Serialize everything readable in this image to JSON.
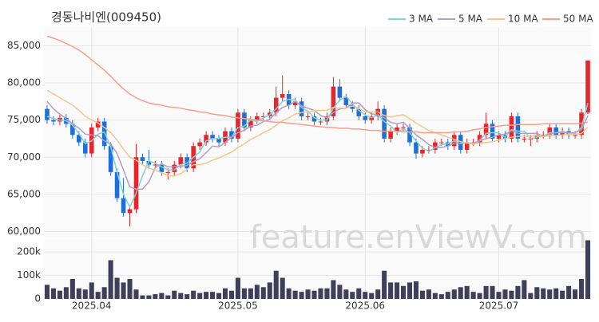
{
  "chart_data": [
    {
      "type": "candlestick",
      "title": "경동나비엔(009450)",
      "watermark": "feature.enViewV.com",
      "categories": [
        null,
        null,
        null,
        null,
        null,
        null,
        null,
        "2025.04",
        null,
        null,
        null,
        null,
        null,
        null,
        null,
        null,
        null,
        null,
        null,
        null,
        null,
        null,
        null,
        null,
        null,
        null,
        null,
        null,
        null,
        null,
        "2025.05",
        null,
        null,
        null,
        null,
        null,
        null,
        null,
        null,
        null,
        null,
        null,
        null,
        null,
        null,
        null,
        null,
        null,
        null,
        null,
        "2025.06",
        null,
        null,
        null,
        null,
        null,
        null,
        null,
        null,
        null,
        null,
        null,
        null,
        null,
        null,
        null,
        null,
        null,
        null,
        null,
        null,
        "2025.07",
        null,
        null,
        null,
        null,
        null,
        null,
        null,
        null,
        null,
        null,
        null,
        null,
        null,
        null
      ],
      "open": [
        76500,
        75000,
        74800,
        75300,
        74500,
        73000,
        72000,
        70500,
        74000,
        74800,
        71500,
        68000,
        64500,
        62500,
        63000,
        70000,
        69500,
        69000,
        69000,
        68000,
        68000,
        69000,
        70000,
        68500,
        71500,
        72000,
        73000,
        72500,
        72000,
        73500,
        72500,
        76000,
        74000,
        75000,
        75500,
        75500,
        76000,
        78000,
        78500,
        77000,
        77500,
        75500,
        75500,
        74800,
        74800,
        75500,
        79500,
        78000,
        77000,
        76500,
        75500,
        75000,
        75500,
        76500,
        72500,
        73500,
        74000,
        74000,
        72000,
        70500,
        71000,
        71000,
        72000,
        72000,
        71500,
        73000,
        71000,
        72000,
        72000,
        73000,
        74500,
        72500,
        73000,
        72500,
        75500,
        72500,
        72500,
        72500,
        73000,
        73000,
        74000,
        73000,
        73500,
        73000,
        73000,
        76000
      ],
      "high": [
        77000,
        75500,
        75800,
        75800,
        75000,
        73500,
        72500,
        74500,
        75300,
        75300,
        72000,
        68500,
        67200,
        63500,
        71800,
        70500,
        71000,
        69500,
        69500,
        68500,
        69500,
        70500,
        70500,
        72000,
        72500,
        73500,
        73500,
        73000,
        74000,
        74000,
        76500,
        76500,
        75500,
        76000,
        76000,
        76500,
        79500,
        81000,
        79000,
        78000,
        78000,
        76000,
        76000,
        75300,
        76000,
        80800,
        80500,
        78500,
        77500,
        77000,
        76000,
        76000,
        77500,
        77000,
        74000,
        74500,
        74500,
        74500,
        72500,
        71500,
        71500,
        72500,
        72500,
        72500,
        73500,
        73500,
        72500,
        72500,
        73500,
        76000,
        75000,
        73500,
        73500,
        76000,
        76000,
        73000,
        73000,
        73500,
        73500,
        74500,
        74500,
        74000,
        74000,
        73500,
        76500,
        83000
      ],
      "low": [
        74500,
        74300,
        74300,
        74000,
        72500,
        71500,
        70000,
        70000,
        73500,
        71000,
        67500,
        64000,
        62000,
        60700,
        62500,
        69000,
        68500,
        68500,
        67500,
        67000,
        67500,
        68500,
        68000,
        68000,
        71000,
        71500,
        72000,
        71500,
        71500,
        72000,
        72000,
        73500,
        73500,
        74500,
        75000,
        75000,
        75500,
        77500,
        76500,
        76500,
        75000,
        75000,
        74300,
        74300,
        74300,
        75000,
        77500,
        76500,
        76000,
        75000,
        74500,
        74500,
        75000,
        72000,
        72000,
        73000,
        73500,
        71500,
        69800,
        70000,
        70500,
        70500,
        71500,
        71000,
        71000,
        70500,
        70500,
        71500,
        71500,
        72500,
        72000,
        72000,
        72000,
        72000,
        72000,
        72000,
        71500,
        72000,
        72500,
        72500,
        72500,
        72500,
        72500,
        72500,
        72500,
        75800
      ],
      "close": [
        75000,
        74800,
        75300,
        74500,
        73000,
        72000,
        70500,
        74000,
        74800,
        71500,
        68000,
        64500,
        62500,
        63000,
        70000,
        69500,
        69000,
        69000,
        68000,
        68000,
        69000,
        70000,
        68500,
        71500,
        72000,
        73000,
        72500,
        72000,
        73500,
        72500,
        76000,
        74000,
        75000,
        75500,
        75500,
        76000,
        78000,
        78500,
        77000,
        77500,
        75500,
        75500,
        74800,
        74800,
        75500,
        79500,
        78000,
        77000,
        76500,
        75500,
        75000,
        75500,
        76500,
        72500,
        73500,
        74000,
        74000,
        72000,
        70500,
        71000,
        71000,
        72000,
        72000,
        71500,
        73000,
        71000,
        72000,
        72000,
        73000,
        74500,
        72500,
        73000,
        72500,
        75500,
        72500,
        72500,
        72500,
        73000,
        73000,
        74000,
        73000,
        73500,
        73000,
        73000,
        76000,
        83000
      ],
      "up_color": "#e8242c",
      "down_color": "#1f6fd6",
      "series": [
        {
          "name": "3 MA",
          "color": "#7fd3d3",
          "values": [
            75500,
            75200,
            75000,
            74900,
            74300,
            73200,
            71800,
            72200,
            73100,
            73400,
            71400,
            68000,
            65000,
            63300,
            65200,
            67500,
            69500,
            69200,
            68700,
            68300,
            68300,
            69000,
            69200,
            70000,
            70700,
            72200,
            72500,
            72500,
            72700,
            72700,
            74000,
            74200,
            75000,
            74800,
            75300,
            75700,
            76500,
            77500,
            77800,
            77700,
            76700,
            76200,
            75300,
            75000,
            75000,
            76600,
            77700,
            78200,
            77200,
            76300,
            75700,
            75300,
            75700,
            74800,
            74200,
            73300,
            73800,
            73300,
            72200,
            71200,
            70800,
            71300,
            71700,
            71800,
            72200,
            71800,
            72000,
            71700,
            72300,
            73200,
            73300,
            73300,
            72700,
            73700,
            73500,
            73500,
            72500,
            72700,
            72800,
            73300,
            73300,
            73500,
            73200,
            73200,
            74000,
            77300
          ]
        },
        {
          "name": "5 MA",
          "color": "#b39bc9",
          "values": [
            77500,
            76500,
            75800,
            75200,
            74500,
            73900,
            73100,
            73000,
            72900,
            72200,
            71800,
            70500,
            68300,
            66000,
            65700,
            65700,
            66700,
            68600,
            69100,
            68700,
            68700,
            68800,
            68900,
            69400,
            69800,
            70600,
            71500,
            71400,
            72000,
            72700,
            73300,
            73600,
            74200,
            74300,
            74800,
            75100,
            76000,
            76700,
            77000,
            77500,
            76900,
            76600,
            76300,
            75600,
            75300,
            76000,
            76500,
            76600,
            77300,
            77300,
            76400,
            75800,
            75700,
            75300,
            74700,
            74500,
            74700,
            73900,
            73000,
            72400,
            71700,
            71300,
            71300,
            71500,
            71900,
            71900,
            71900,
            71900,
            72200,
            72500,
            72700,
            73000,
            73100,
            73600,
            73200,
            73200,
            73200,
            73200,
            72800,
            73100,
            73300,
            73300,
            73300,
            73300,
            73700,
            75600
          ]
        },
        {
          "name": "10 MA",
          "color": "#f3c68e",
          "values": [
            79000,
            78500,
            78000,
            77500,
            77000,
            76300,
            75500,
            75000,
            74600,
            74000,
            73300,
            72300,
            71100,
            70000,
            69600,
            69000,
            68500,
            68300,
            67900,
            67500,
            67500,
            67800,
            68400,
            69000,
            69000,
            69200,
            69600,
            69900,
            70300,
            70700,
            71300,
            71800,
            72400,
            72800,
            73300,
            73700,
            74300,
            74900,
            75300,
            75800,
            76000,
            76100,
            76300,
            76300,
            76300,
            76700,
            76600,
            76600,
            76900,
            76600,
            76100,
            76100,
            76100,
            75600,
            75400,
            75600,
            75700,
            75200,
            74600,
            74100,
            73600,
            73300,
            73000,
            72700,
            72400,
            72100,
            71900,
            71800,
            71900,
            72000,
            72100,
            72300,
            72500,
            72700,
            72800,
            72800,
            72800,
            72900,
            72800,
            72900,
            72900,
            73000,
            73100,
            73100,
            73200,
            74000
          ]
        },
        {
          "name": "50 MA",
          "color": "#f4a08a",
          "values": [
            86300,
            86000,
            85700,
            85300,
            84900,
            84400,
            83800,
            83100,
            82400,
            81700,
            80900,
            80000,
            79200,
            78500,
            78000,
            77600,
            77300,
            77100,
            77000,
            76800,
            76700,
            76600,
            76400,
            76300,
            76100,
            76000,
            75800,
            75700,
            75600,
            75400,
            75300,
            75200,
            75100,
            75000,
            74900,
            74800,
            74700,
            74700,
            74600,
            74500,
            74400,
            74300,
            74200,
            74100,
            74000,
            74000,
            73900,
            73900,
            73800,
            73800,
            73700,
            73600,
            73600,
            73500,
            73500,
            73500,
            73400,
            73400,
            73400,
            73300,
            73300,
            73300,
            73300,
            73300,
            73400,
            73400,
            73500,
            73700,
            73800,
            74000,
            74100,
            74200,
            74300,
            74300,
            74400,
            74400,
            74400,
            74400,
            74500,
            74500,
            74500,
            74500,
            74500,
            74500,
            74600,
            74700
          ]
        }
      ],
      "ylim": [
        59200,
        87500
      ],
      "yticks": [
        {
          "value": 60000,
          "label": "60,000"
        },
        {
          "value": 65000,
          "label": "65,000"
        },
        {
          "value": 70000,
          "label": "70,000"
        },
        {
          "value": 75000,
          "label": "75,000"
        },
        {
          "value": 80000,
          "label": "80,000"
        },
        {
          "value": 85000,
          "label": "85,000"
        }
      ],
      "grid": true,
      "legend": "top-right"
    },
    {
      "type": "bar",
      "values": [
        60000,
        45000,
        35000,
        50000,
        85000,
        45000,
        40000,
        70000,
        30000,
        50000,
        165000,
        90000,
        70000,
        85000,
        40000,
        15000,
        15000,
        20000,
        25000,
        15000,
        35000,
        25000,
        20000,
        35000,
        25000,
        30000,
        30000,
        25000,
        45000,
        35000,
        90000,
        45000,
        45000,
        60000,
        50000,
        70000,
        120000,
        90000,
        45000,
        35000,
        30000,
        40000,
        35000,
        45000,
        45000,
        80000,
        60000,
        40000,
        30000,
        45000,
        30000,
        25000,
        40000,
        120000,
        70000,
        70000,
        55000,
        70000,
        75000,
        35000,
        40000,
        25000,
        20000,
        30000,
        40000,
        50000,
        55000,
        30000,
        25000,
        55000,
        55000,
        30000,
        40000,
        35000,
        55000,
        80000,
        25000,
        50000,
        45000,
        40000,
        45000,
        35000,
        55000,
        40000,
        85000,
        250000
      ],
      "color": "#3f3f5c",
      "ylim": [
        0,
        255000
      ],
      "yticks": [
        0,
        {
          "value": 100000,
          "label": "100k"
        },
        {
          "value": 200000,
          "label": "200k"
        }
      ],
      "grid": true
    }
  ]
}
